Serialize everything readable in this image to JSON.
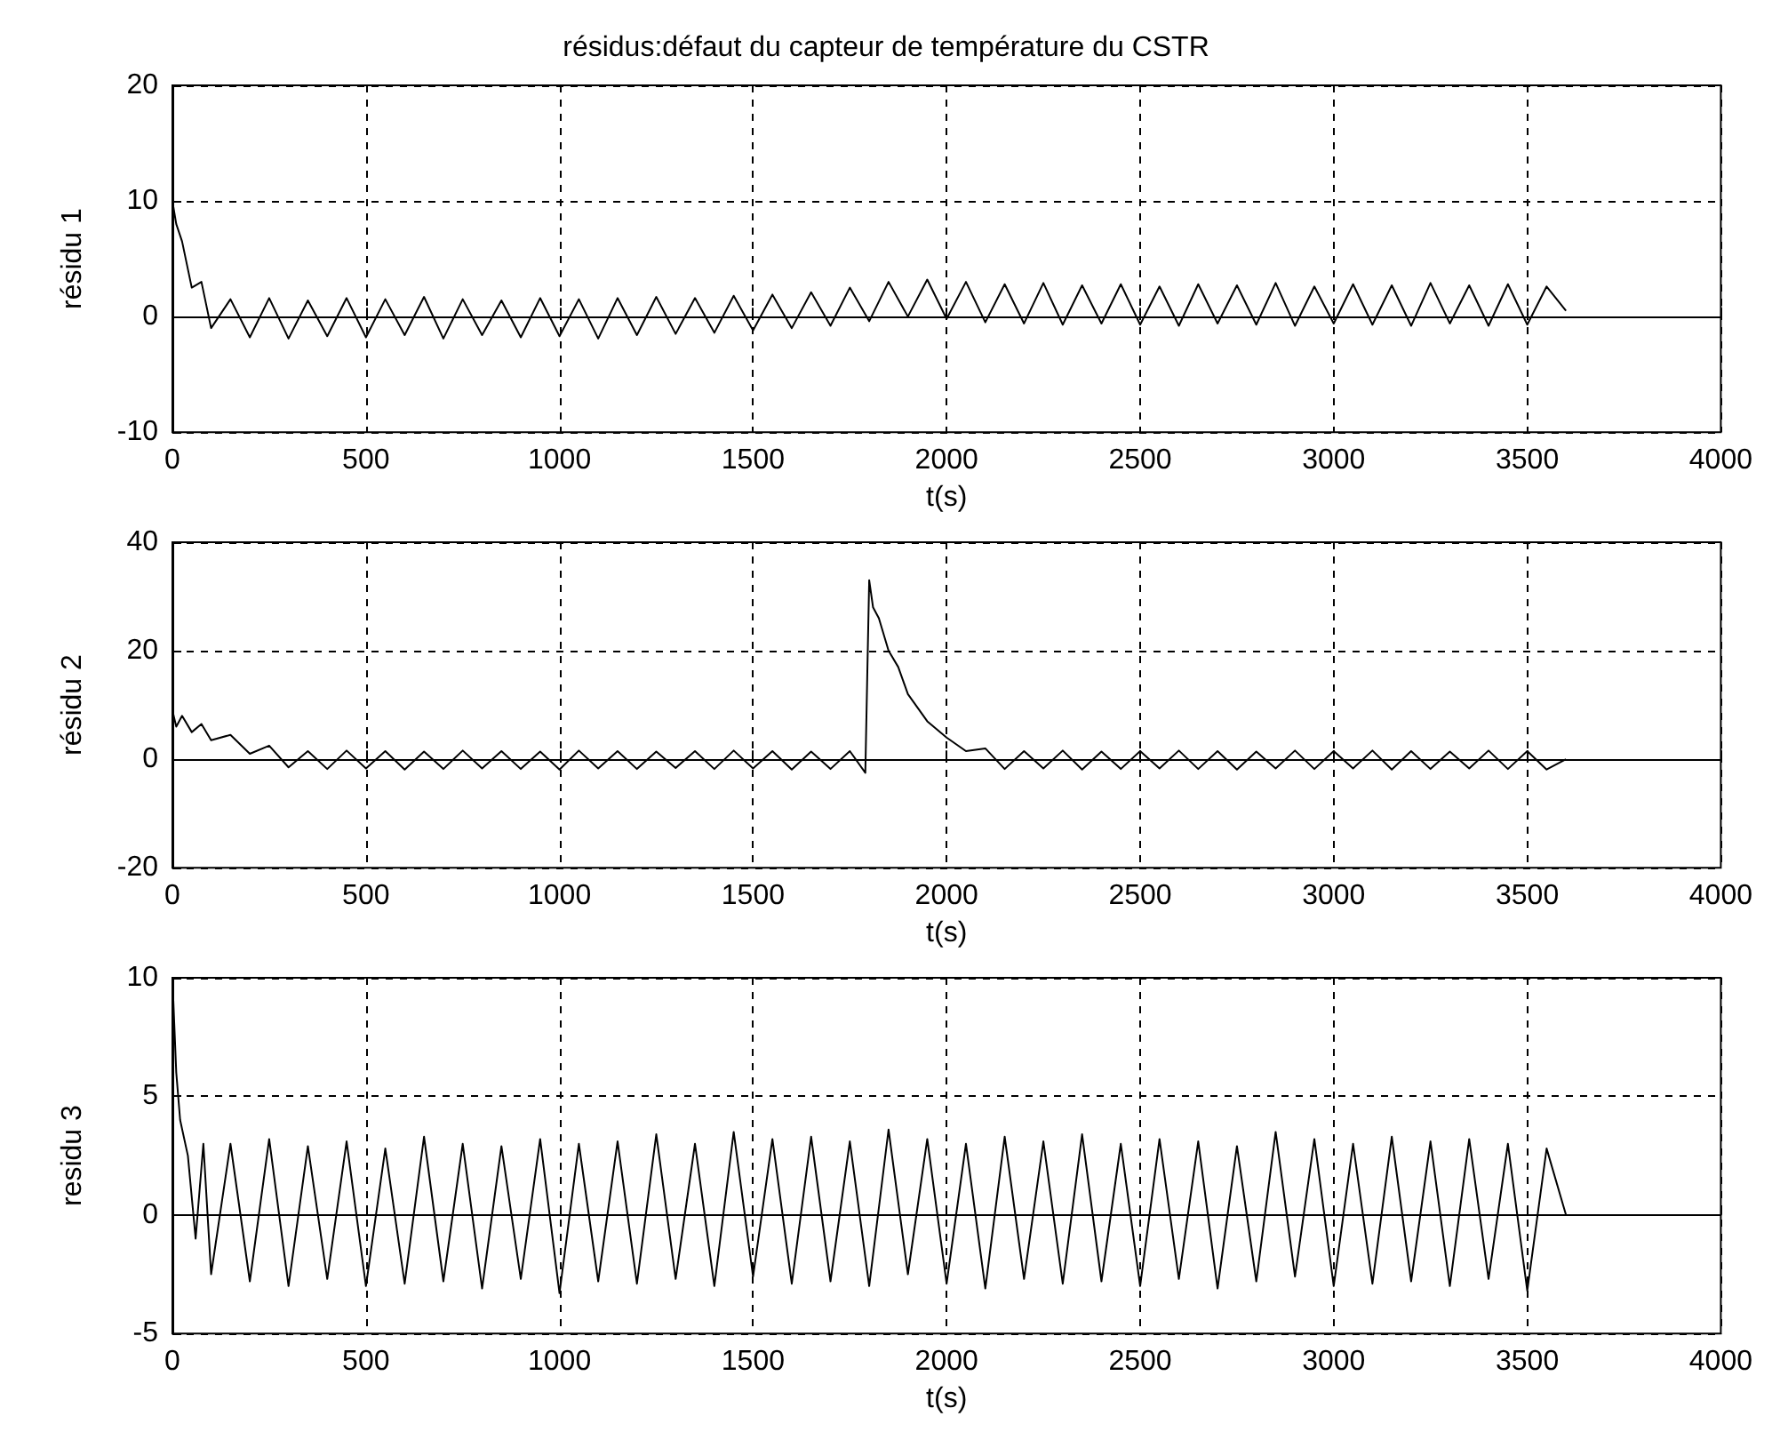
{
  "chart_data": [
    {
      "type": "line",
      "title": "résidus:défaut du capteur de température du CSTR",
      "xlabel": "t(s)",
      "ylabel": "résidu 1",
      "color": "#000000",
      "grid": true,
      "xlim": [
        0,
        4000
      ],
      "xticks": [
        0,
        500,
        1000,
        1500,
        2000,
        2500,
        3000,
        3500,
        4000
      ],
      "ylim": [
        -10,
        20
      ],
      "yticks": [
        -10,
        0,
        10,
        20
      ],
      "x": [
        0,
        10,
        25,
        50,
        75,
        100,
        150,
        200,
        250,
        300,
        350,
        400,
        450,
        500,
        550,
        600,
        650,
        700,
        750,
        800,
        850,
        900,
        950,
        1000,
        1050,
        1100,
        1150,
        1200,
        1250,
        1300,
        1350,
        1400,
        1450,
        1500,
        1550,
        1600,
        1650,
        1700,
        1750,
        1800,
        1850,
        1900,
        1950,
        2000,
        2050,
        2100,
        2150,
        2200,
        2250,
        2300,
        2350,
        2400,
        2450,
        2500,
        2550,
        2600,
        2650,
        2700,
        2750,
        2800,
        2850,
        2900,
        2950,
        3000,
        3050,
        3100,
        3150,
        3200,
        3250,
        3300,
        3350,
        3400,
        3450,
        3500,
        3550,
        3600
      ],
      "values": [
        10,
        8,
        6.5,
        2.5,
        3,
        -1,
        1.5,
        -1.8,
        1.6,
        -1.9,
        1.4,
        -1.7,
        1.6,
        -1.8,
        1.5,
        -1.6,
        1.7,
        -1.9,
        1.5,
        -1.6,
        1.4,
        -1.8,
        1.6,
        -1.7,
        1.5,
        -1.9,
        1.6,
        -1.6,
        1.7,
        -1.5,
        1.6,
        -1.4,
        1.8,
        -1.2,
        1.9,
        -1,
        2.1,
        -0.8,
        2.5,
        -0.4,
        3,
        0,
        3.2,
        -0.2,
        3,
        -0.5,
        2.8,
        -0.6,
        2.9,
        -0.7,
        2.7,
        -0.6,
        2.8,
        -0.7,
        2.6,
        -0.8,
        2.8,
        -0.6,
        2.7,
        -0.7,
        2.9,
        -0.8,
        2.6,
        -0.6,
        2.8,
        -0.7,
        2.7,
        -0.8,
        2.9,
        -0.6,
        2.7,
        -0.8,
        2.8,
        -0.7,
        2.6,
        0.5
      ]
    },
    {
      "type": "line",
      "xlabel": "t(s)",
      "ylabel": "résidu 2",
      "color": "#000000",
      "grid": true,
      "xlim": [
        0,
        4000
      ],
      "xticks": [
        0,
        500,
        1000,
        1500,
        2000,
        2500,
        3000,
        3500,
        4000
      ],
      "ylim": [
        -20,
        40
      ],
      "yticks": [
        -20,
        0,
        20,
        40
      ],
      "x": [
        0,
        10,
        25,
        50,
        75,
        100,
        150,
        200,
        250,
        300,
        350,
        400,
        450,
        500,
        550,
        600,
        650,
        700,
        750,
        800,
        850,
        900,
        950,
        1000,
        1050,
        1100,
        1150,
        1200,
        1250,
        1300,
        1350,
        1400,
        1450,
        1500,
        1550,
        1600,
        1650,
        1700,
        1750,
        1790,
        1800,
        1810,
        1825,
        1850,
        1875,
        1900,
        1950,
        2000,
        2050,
        2100,
        2150,
        2200,
        2250,
        2300,
        2350,
        2400,
        2450,
        2500,
        2550,
        2600,
        2650,
        2700,
        2750,
        2800,
        2850,
        2900,
        2950,
        3000,
        3050,
        3100,
        3150,
        3200,
        3250,
        3300,
        3350,
        3400,
        3450,
        3500,
        3550,
        3600
      ],
      "values": [
        9,
        6,
        8,
        5,
        6.5,
        3.5,
        4.5,
        1,
        2.5,
        -1.5,
        1.5,
        -1.8,
        1.6,
        -1.7,
        1.5,
        -1.9,
        1.4,
        -1.8,
        1.6,
        -1.7,
        1.5,
        -1.8,
        1.4,
        -1.9,
        1.6,
        -1.7,
        1.5,
        -1.8,
        1.4,
        -1.6,
        1.5,
        -1.8,
        1.6,
        -1.7,
        1.5,
        -1.9,
        1.4,
        -1.8,
        1.5,
        -2.5,
        33,
        28,
        26,
        20,
        17,
        12,
        7,
        4,
        1.5,
        2,
        -1.8,
        1.5,
        -1.7,
        1.6,
        -1.9,
        1.4,
        -1.8,
        1.5,
        -1.7,
        1.6,
        -1.8,
        1.5,
        -1.9,
        1.4,
        -1.7,
        1.6,
        -1.8,
        1.5,
        -1.7,
        1.6,
        -1.9,
        1.5,
        -1.8,
        1.4,
        -1.7,
        1.6,
        -1.8,
        1.5,
        -1.9,
        0
      ]
    },
    {
      "type": "line",
      "xlabel": "t(s)",
      "ylabel": "residu 3",
      "color": "#000000",
      "grid": true,
      "xlim": [
        0,
        4000
      ],
      "xticks": [
        0,
        500,
        1000,
        1500,
        2000,
        2500,
        3000,
        3500,
        4000
      ],
      "ylim": [
        -5,
        10
      ],
      "yticks": [
        -5,
        0,
        5,
        10
      ],
      "x": [
        0,
        10,
        20,
        40,
        60,
        80,
        100,
        150,
        200,
        250,
        300,
        350,
        400,
        450,
        500,
        550,
        600,
        650,
        700,
        750,
        800,
        850,
        900,
        950,
        1000,
        1050,
        1100,
        1150,
        1200,
        1250,
        1300,
        1350,
        1400,
        1450,
        1500,
        1550,
        1600,
        1650,
        1700,
        1750,
        1800,
        1850,
        1900,
        1950,
        2000,
        2050,
        2100,
        2150,
        2200,
        2250,
        2300,
        2350,
        2400,
        2450,
        2500,
        2550,
        2600,
        2650,
        2700,
        2750,
        2800,
        2850,
        2900,
        2950,
        3000,
        3050,
        3100,
        3150,
        3200,
        3250,
        3300,
        3350,
        3400,
        3450,
        3500,
        3550,
        3600
      ],
      "values": [
        10,
        6,
        4,
        2.5,
        -1,
        3,
        -2.5,
        3,
        -2.8,
        3.2,
        -3,
        2.9,
        -2.7,
        3.1,
        -3,
        2.8,
        -2.9,
        3.3,
        -2.8,
        3,
        -3.1,
        2.9,
        -2.7,
        3.2,
        -3.3,
        3,
        -2.8,
        3.1,
        -2.9,
        3.4,
        -2.7,
        3,
        -3,
        3.5,
        -2.6,
        3.2,
        -2.9,
        3.3,
        -2.8,
        3.1,
        -3,
        3.6,
        -2.5,
        3.2,
        -2.9,
        3,
        -3.1,
        3.3,
        -2.7,
        3.1,
        -2.9,
        3.4,
        -2.8,
        3,
        -3,
        3.2,
        -2.7,
        3.1,
        -3.1,
        2.9,
        -2.8,
        3.5,
        -2.6,
        3.2,
        -3,
        3,
        -2.9,
        3.3,
        -2.8,
        3.1,
        -3,
        3.2,
        -2.7,
        3,
        -3.2,
        2.8,
        0
      ]
    }
  ]
}
